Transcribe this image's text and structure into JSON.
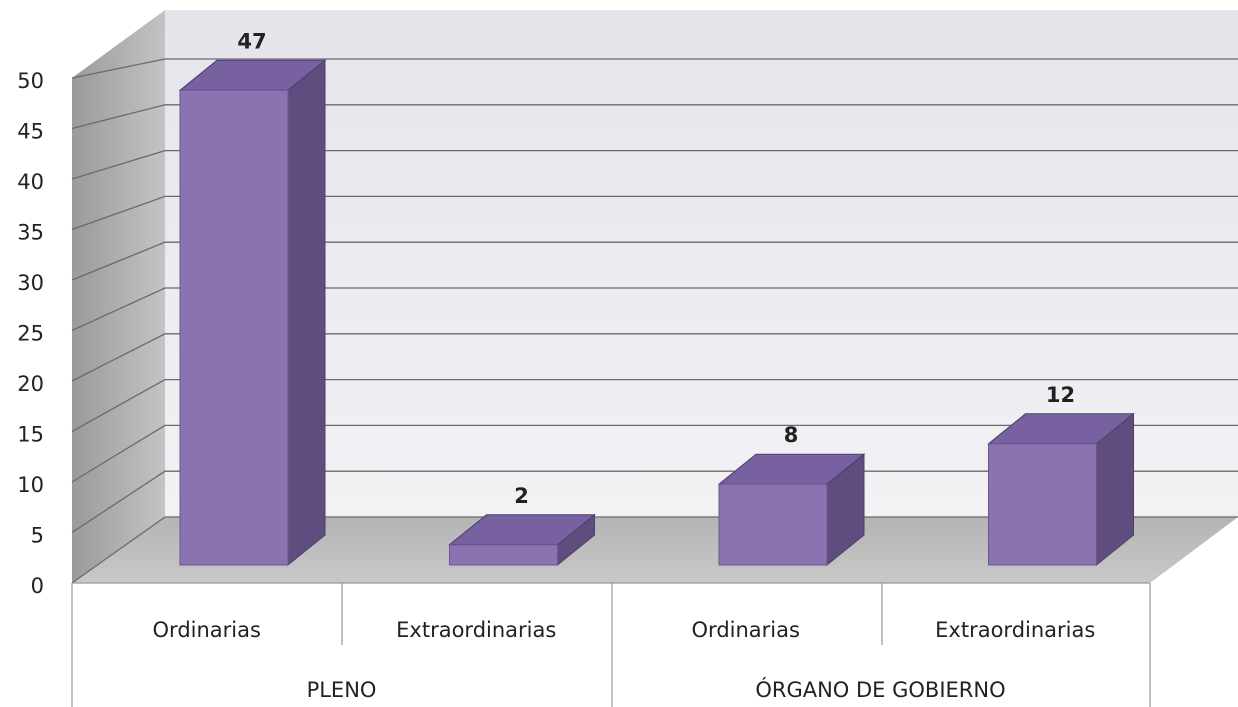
{
  "chart_data": {
    "type": "bar3d",
    "categories": [
      "Ordinarias",
      "Extraordinarias",
      "Ordinarias",
      "Extraordinarias"
    ],
    "groups": [
      "PLENO",
      "ÓRGANO DE GOBIERNO"
    ],
    "values": [
      47,
      2,
      8,
      12
    ],
    "color": "#8b72b0",
    "ylim": [
      0,
      50
    ],
    "yticks": [
      0,
      5,
      10,
      15,
      20,
      25,
      30,
      35,
      40,
      45,
      50
    ],
    "grid": true
  }
}
